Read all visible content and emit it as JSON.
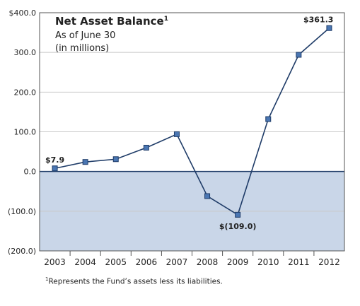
{
  "chart_data": {
    "type": "line",
    "title": "Net Asset Balance",
    "title_superscript": "1",
    "subtitle_lines": [
      "As of June 30",
      "(in millions)"
    ],
    "categories": [
      "2003",
      "2004",
      "2005",
      "2006",
      "2007",
      "2008",
      "2009",
      "2010",
      "2011",
      "2012"
    ],
    "values": [
      7.9,
      24.0,
      31.0,
      60.0,
      94.0,
      -62.0,
      -109.0,
      132.0,
      294.0,
      361.3
    ],
    "y_ticks": [
      400,
      300,
      200,
      100,
      0,
      -100,
      -200
    ],
    "y_tick_labels": [
      "$400.0",
      "300.0",
      "200.0",
      "100.0",
      "0.0",
      "(100.0)",
      "(200.0)"
    ],
    "ylim": [
      -200,
      400
    ],
    "xlabel": "",
    "ylabel": "",
    "grid": "horizontal",
    "negative_region_shaded": true,
    "annotations": [
      {
        "category": "2003",
        "text": "$7.9"
      },
      {
        "category": "2009",
        "text": "$(109.0)"
      },
      {
        "category": "2012",
        "text": "$361.3"
      }
    ],
    "colors": {
      "line": "#1f3c68",
      "marker_fill": "#4a76b2",
      "marker_stroke": "#1f3c68",
      "negative_fill": "#c9d6e8",
      "grid": "#c8c8c8",
      "zero_line": "#1f3c68"
    }
  },
  "footnote": {
    "marker": "1",
    "text": "Represents the Fund’s assets less its liabilities."
  }
}
